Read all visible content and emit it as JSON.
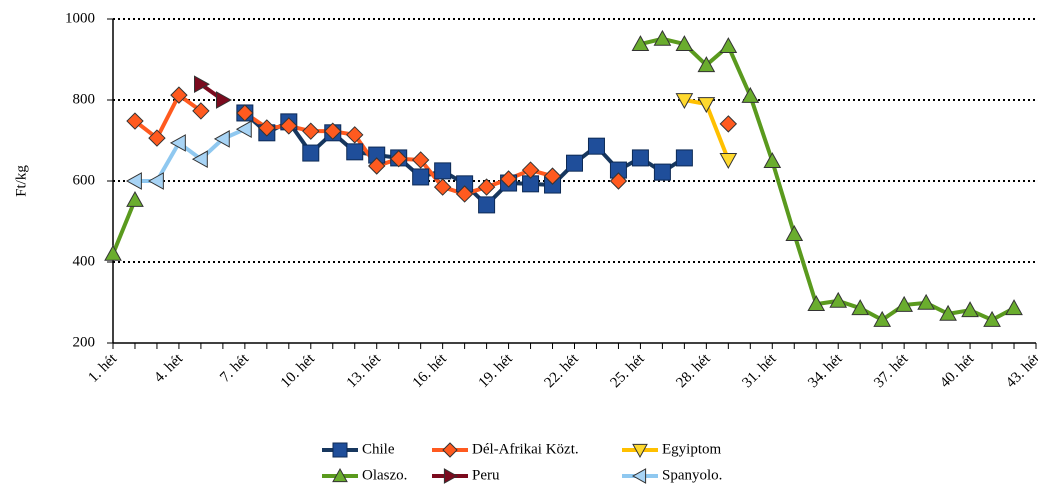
{
  "chart_data": {
    "type": "line",
    "y_label": "Ft/kg",
    "categories": [
      "1. hét",
      null,
      null,
      "4. hét",
      null,
      null,
      "7. hét",
      null,
      null,
      "10. hét",
      null,
      null,
      "13. hét",
      null,
      null,
      "16. hét",
      null,
      null,
      "19. hét",
      null,
      null,
      "22. hét",
      null,
      null,
      "25. hét",
      null,
      null,
      "28. hét",
      null,
      null,
      "31. hét",
      null,
      null,
      "34. hét",
      null,
      null,
      "37. hét",
      null,
      null,
      "40. hét",
      null,
      null,
      "43. hét"
    ],
    "ylim": [
      200,
      1000
    ],
    "yticks": [
      200,
      400,
      600,
      800,
      1000
    ],
    "grid": true,
    "series": [
      {
        "name": "Chile",
        "color": "#1f4e9a",
        "line_color": "#17375e",
        "marker": "square",
        "values": [
          null,
          null,
          null,
          null,
          null,
          null,
          768,
          719,
          746,
          669,
          719,
          672,
          664,
          657,
          610,
          625,
          593,
          541,
          595,
          593,
          590,
          644,
          686,
          627,
          657,
          622,
          657,
          null,
          null,
          null,
          null,
          null,
          null,
          null,
          null,
          null,
          null,
          null,
          null,
          null,
          null,
          null,
          null
        ]
      },
      {
        "name": "Dél-Afrikai Közt.",
        "color": "#ff5a1f",
        "line_color": "#ff5a1f",
        "marker": "diamond",
        "values": [
          null,
          748,
          706,
          812,
          773,
          null,
          768,
          731,
          736,
          723,
          723,
          714,
          637,
          655,
          652,
          585,
          568,
          585,
          605,
          627,
          612,
          null,
          null,
          600,
          null,
          null,
          null,
          null,
          741,
          null,
          null,
          null,
          null,
          null,
          null,
          null,
          null,
          null,
          null,
          null,
          null,
          null,
          null
        ]
      },
      {
        "name": "Egyiptom",
        "color": "#ffd92e",
        "line_color": "#ffc000",
        "marker": "triangle-down",
        "values": [
          null,
          null,
          null,
          null,
          null,
          null,
          null,
          null,
          null,
          null,
          null,
          null,
          null,
          null,
          null,
          null,
          null,
          null,
          null,
          null,
          null,
          null,
          null,
          null,
          null,
          null,
          800,
          790,
          652,
          null,
          null,
          null,
          null,
          null,
          null,
          null,
          null,
          null,
          null,
          null,
          null,
          null,
          null
        ]
      },
      {
        "name": "Olaszo.",
        "color": "#6aad2e",
        "line_color": "#5a9a1e",
        "marker": "triangle-up",
        "values": [
          420,
          553,
          null,
          null,
          null,
          null,
          null,
          null,
          null,
          null,
          null,
          null,
          null,
          null,
          null,
          null,
          null,
          null,
          null,
          null,
          null,
          null,
          null,
          null,
          938,
          951,
          938,
          886,
          933,
          810,
          649,
          469,
          296,
          304,
          286,
          257,
          294,
          299,
          272,
          281,
          257,
          286,
          null
        ]
      },
      {
        "name": "Peru",
        "color": "#7b0a1e",
        "line_color": "#7b0a1e",
        "marker": "triangle-right",
        "values": [
          null,
          null,
          null,
          null,
          839,
          800,
          null,
          null,
          null,
          null,
          null,
          null,
          null,
          null,
          null,
          null,
          null,
          null,
          null,
          null,
          null,
          null,
          null,
          null,
          null,
          null,
          null,
          null,
          null,
          null,
          null,
          null,
          null,
          null,
          null,
          null,
          null,
          null,
          null,
          null,
          null,
          null,
          null
        ]
      },
      {
        "name": "Spanyolo.",
        "color": "#a8d4f5",
        "line_color": "#8fc8f0",
        "marker": "triangle-left",
        "values": [
          null,
          600,
          600,
          694,
          654,
          704,
          728,
          null,
          null,
          null,
          null,
          null,
          null,
          null,
          null,
          null,
          null,
          null,
          null,
          null,
          null,
          null,
          null,
          null,
          null,
          null,
          null,
          null,
          null,
          null,
          null,
          null,
          null,
          null,
          null,
          null,
          null,
          null,
          null,
          null,
          null,
          null,
          null
        ]
      }
    ]
  }
}
